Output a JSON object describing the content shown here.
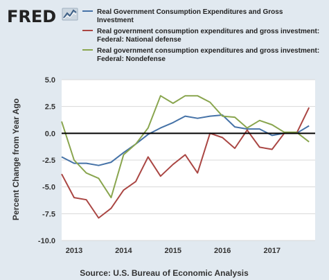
{
  "logo": {
    "text": "FRED",
    "icon": "line-chart-badge-icon"
  },
  "source": "Source: U.S. Bureau of Economic Analysis",
  "chart_data": {
    "type": "line",
    "title": "",
    "xlabel": "",
    "ylabel": "Percent Change from Year Ago",
    "xlim": [
      "2012-10-01",
      "2017-11-15"
    ],
    "ylim": [
      -10.0,
      5.0
    ],
    "y_ticks": [
      5.0,
      2.5,
      0.0,
      -2.5,
      -5.0,
      -7.5,
      -10.0
    ],
    "y_tick_labels": [
      "5.0",
      "2.5",
      "0.0",
      "-2.5",
      "-5.0",
      "-7.5",
      "-10.0"
    ],
    "x_ticks": [
      "2013-01-01",
      "2014-01-01",
      "2015-01-01",
      "2016-01-01",
      "2017-01-01"
    ],
    "x_tick_labels": [
      "2013",
      "2014",
      "2015",
      "2016",
      "2017"
    ],
    "grid": "horizontal",
    "zero_line": true,
    "legend": "top",
    "x": [
      "2012-10-01",
      "2013-01-01",
      "2013-04-01",
      "2013-07-01",
      "2013-10-01",
      "2014-01-01",
      "2014-04-01",
      "2014-07-01",
      "2014-10-01",
      "2015-01-01",
      "2015-04-01",
      "2015-07-01",
      "2015-10-01",
      "2016-01-01",
      "2016-04-01",
      "2016-07-01",
      "2016-10-01",
      "2017-01-01",
      "2017-04-01",
      "2017-07-01",
      "2017-10-01"
    ],
    "series": [
      {
        "name": "Real Government Consumption Expenditures and Gross Investment",
        "color": "#4572a7",
        "values": [
          -2.2,
          -2.8,
          -2.8,
          -3.0,
          -2.7,
          -1.8,
          -1.0,
          -0.1,
          0.5,
          1.0,
          1.6,
          1.4,
          1.6,
          1.7,
          0.6,
          0.4,
          0.4,
          -0.2,
          0.0,
          0.0,
          0.7
        ]
      },
      {
        "name": "Real government consumption expenditures and gross investment: Federal: National defense",
        "color": "#aa4643",
        "values": [
          -3.8,
          -6.0,
          -6.2,
          -7.9,
          -7.0,
          -5.3,
          -4.5,
          -2.2,
          -4.0,
          -2.9,
          -2.0,
          -3.7,
          0.0,
          -0.4,
          -1.4,
          0.3,
          -1.3,
          -1.5,
          0.0,
          0.0,
          2.4
        ]
      },
      {
        "name": "Real government consumption expenditures and gross investment: Federal: Nondefense",
        "color": "#89a54e",
        "values": [
          1.1,
          -2.5,
          -3.7,
          -4.2,
          -6.0,
          -2.0,
          -1.0,
          0.5,
          3.5,
          2.8,
          3.5,
          3.5,
          2.9,
          1.6,
          1.5,
          0.5,
          1.2,
          0.8,
          0.1,
          0.1,
          -0.8
        ]
      }
    ]
  }
}
